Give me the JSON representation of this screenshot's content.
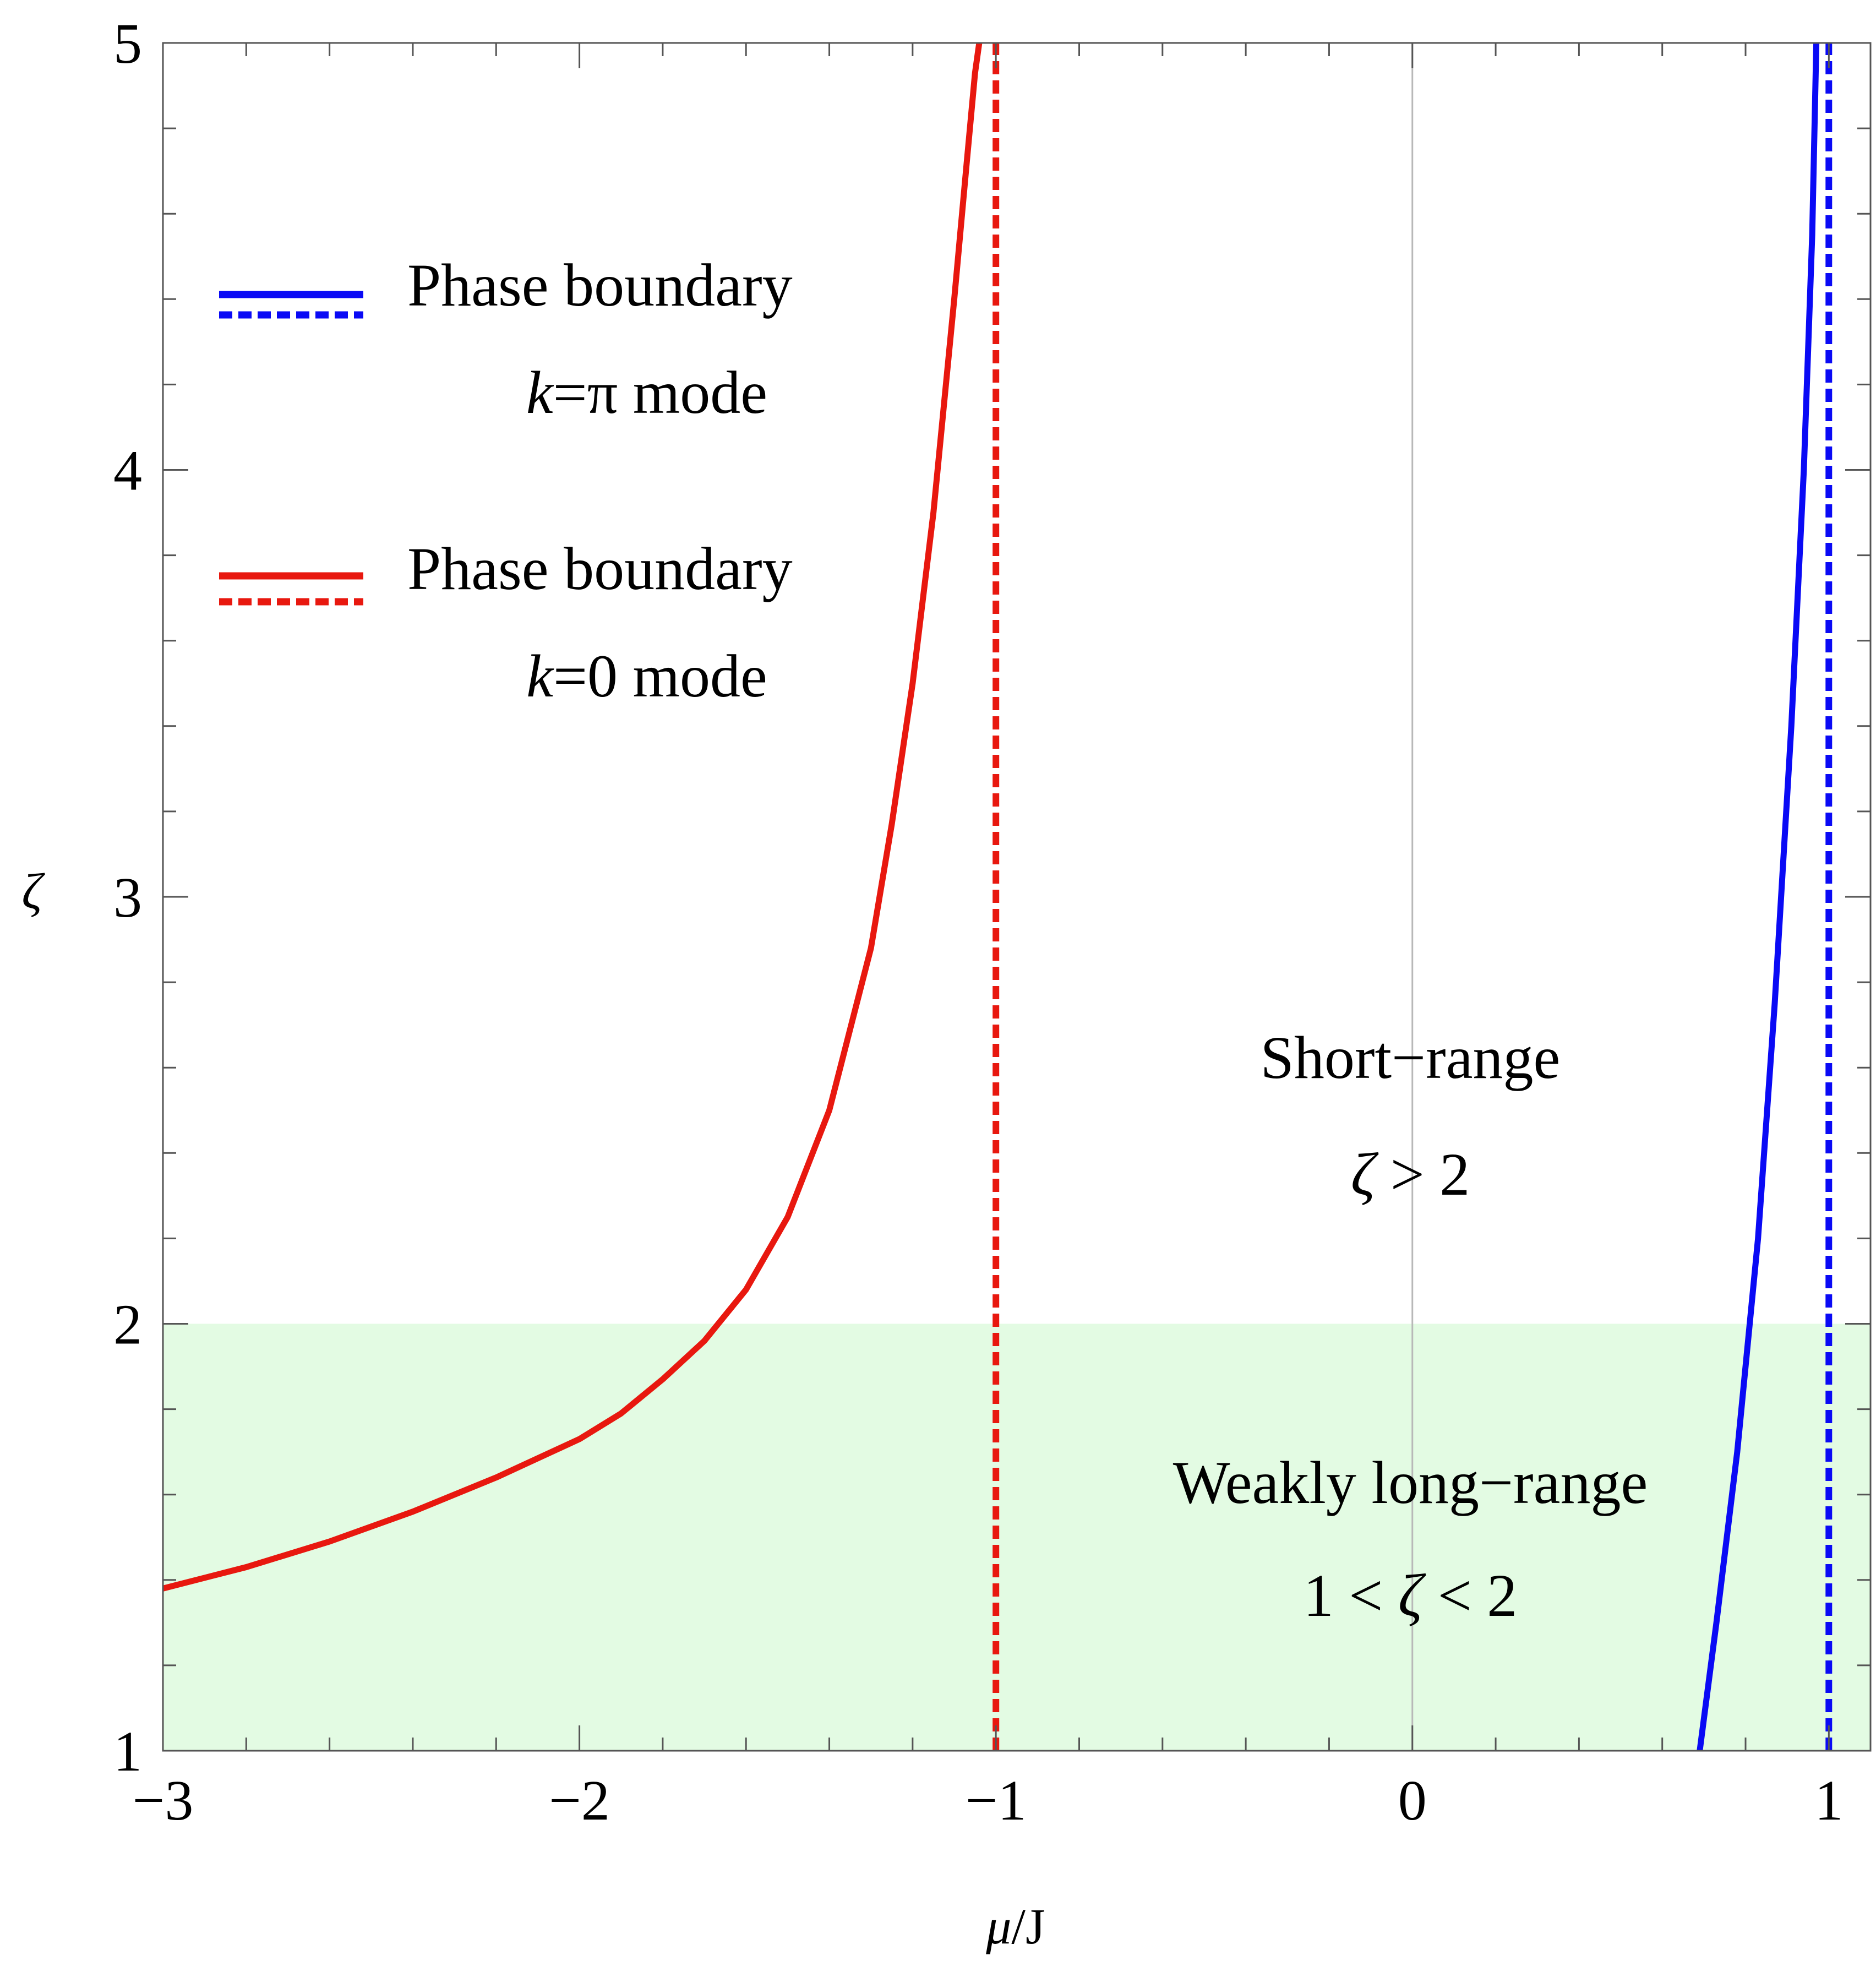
{
  "chart_data": {
    "type": "line",
    "title": "",
    "xlabel": {
      "var": "μ",
      "unit": "/J"
    },
    "ylabel": "ζ",
    "xlim": [
      -3,
      1.1
    ],
    "ylim": [
      1,
      5
    ],
    "x_ticks": [
      {
        "value": -3,
        "label": "−3"
      },
      {
        "value": -2,
        "label": "−2"
      },
      {
        "value": -1,
        "label": "−1"
      },
      {
        "value": 0,
        "label": "0"
      },
      {
        "value": 1,
        "label": "1"
      }
    ],
    "y_ticks": [
      {
        "value": 1,
        "label": "1"
      },
      {
        "value": 2,
        "label": "2"
      },
      {
        "value": 3,
        "label": "3"
      },
      {
        "value": 4,
        "label": "4"
      },
      {
        "value": 5,
        "label": "5"
      }
    ],
    "shaded_region": {
      "y_from": 1,
      "y_to": 2,
      "color": "#e3fbe3"
    },
    "zero_line_x": 0,
    "series": [
      {
        "name": "Phase boundary k=0 mode (solid)",
        "color": "#e8180f",
        "style": "solid",
        "x": [
          -3.0,
          -2.8,
          -2.6,
          -2.4,
          -2.2,
          -2.0,
          -1.9,
          -1.8,
          -1.7,
          -1.6,
          -1.5,
          -1.4,
          -1.3,
          -1.25,
          -1.2,
          -1.15,
          -1.1,
          -1.07,
          -1.05,
          -1.04
        ],
        "y": [
          1.38,
          1.43,
          1.49,
          1.56,
          1.64,
          1.73,
          1.79,
          1.87,
          1.96,
          2.08,
          2.25,
          2.5,
          2.88,
          3.17,
          3.5,
          3.9,
          4.4,
          4.72,
          4.93,
          5.0
        ]
      },
      {
        "name": "Phase boundary k=0 mode (dashed)",
        "color": "#e8180f",
        "style": "dashed",
        "x": [
          -1.0,
          -1.0
        ],
        "y": [
          1.0,
          5.0
        ]
      },
      {
        "name": "Phase boundary k=π mode (solid)",
        "color": "#0a0af5",
        "style": "solid",
        "x": [
          0.69,
          0.73,
          0.78,
          0.83,
          0.87,
          0.91,
          0.94,
          0.96,
          0.97
        ],
        "y": [
          1.0,
          1.3,
          1.7,
          2.2,
          2.75,
          3.4,
          4.0,
          4.55,
          5.0
        ]
      },
      {
        "name": "Phase boundary k=π mode (dashed)",
        "color": "#0a0af5",
        "style": "dashed",
        "x": [
          1.0,
          1.0
        ],
        "y": [
          1.0,
          5.0
        ]
      }
    ],
    "legend": {
      "placement": "top-left",
      "entries": [
        {
          "line1": "Phase boundary",
          "line2_var": "k",
          "line2_rest": "=π mode",
          "color": "#0a0af5"
        },
        {
          "line1": "Phase boundary",
          "line2_var": "k",
          "line2_rest": "=0 mode",
          "color": "#e8180f"
        }
      ]
    },
    "annotations": [
      {
        "id": "short-range",
        "line1": "Short−range",
        "line2_var": "ζ",
        "line2_rest": " > 2",
        "x": 0,
        "y": 2.48
      },
      {
        "id": "weakly-long-range",
        "line1": "Weakly long−range",
        "line2_pre": "1 < ",
        "line2_var": "ζ",
        "line2_rest": " < 2",
        "x": 0,
        "y": 1.5
      }
    ]
  }
}
